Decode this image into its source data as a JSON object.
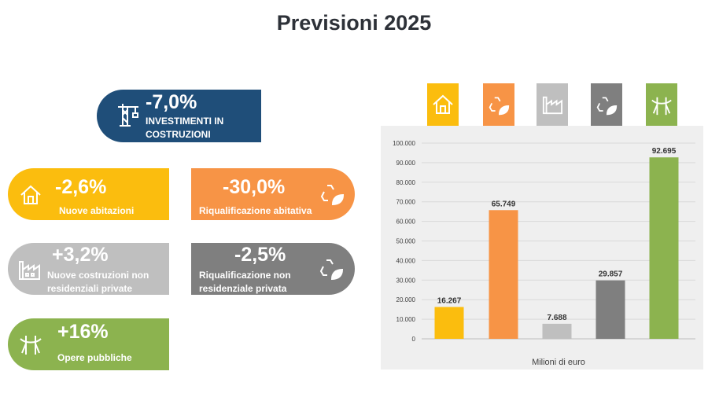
{
  "title": "Previsioni 2025",
  "pills": {
    "investimenti": {
      "pct": "-7,0%",
      "label": "INVESTIMENTI IN COSTRUZIONI",
      "color": "#1f4e79",
      "icon": "crane-icon"
    },
    "nuove_abitazioni": {
      "pct": "-2,6%",
      "label": "Nuove abitazioni",
      "color": "#fbbd0e",
      "icon": "house-icon"
    },
    "riqualificazione_abitativa": {
      "pct": "-30,0%",
      "label": "Riqualificazione abitativa",
      "color": "#f79446",
      "icon": "recycle-leaf-icon"
    },
    "nuove_costruzioni_non_res": {
      "pct": "+3,2%",
      "label": "Nuove costruzioni non residenziali private",
      "color": "#bfbfbf",
      "icon": "factory-icon"
    },
    "riqualificazione_non_res": {
      "pct": "-2,5%",
      "label": "Riqualificazione non residenziale privata",
      "color": "#7f7f7f",
      "icon": "recycle-leaf-icon"
    },
    "opere_pubbliche": {
      "pct": "+16%",
      "label": "Opere pubbliche",
      "color": "#8cb34f",
      "icon": "bridge-icon"
    }
  },
  "chart_data": {
    "type": "bar",
    "categories": [
      "Nuove abitazioni",
      "Riqualificazione abitativa",
      "Nuove costruzioni non residenziali private",
      "Riqualificazione non residenziale privata",
      "Opere pubbliche"
    ],
    "values": [
      16267,
      65749,
      7688,
      29857,
      92695
    ],
    "value_labels": [
      "16.267",
      "65.749",
      "7.688",
      "29.857",
      "92.695"
    ],
    "colors": [
      "#fbbd0e",
      "#f79446",
      "#bfbfbf",
      "#7f7f7f",
      "#8cb34f"
    ],
    "category_icons": [
      "house-icon",
      "recycle-leaf-icon",
      "factory-icon",
      "recycle-leaf-icon",
      "bridge-icon"
    ],
    "xlabel": "Milioni di euro",
    "ylabel": "",
    "ylim": [
      0,
      100000
    ],
    "yticks": [
      0,
      10000,
      20000,
      30000,
      40000,
      50000,
      60000,
      70000,
      80000,
      90000,
      100000
    ],
    "ytick_labels": [
      "0",
      "10.000",
      "20.000",
      "30.000",
      "40.000",
      "50.000",
      "60.000",
      "70.000",
      "80.000",
      "90.000",
      "100.000"
    ],
    "grid": true,
    "legend": "none"
  }
}
